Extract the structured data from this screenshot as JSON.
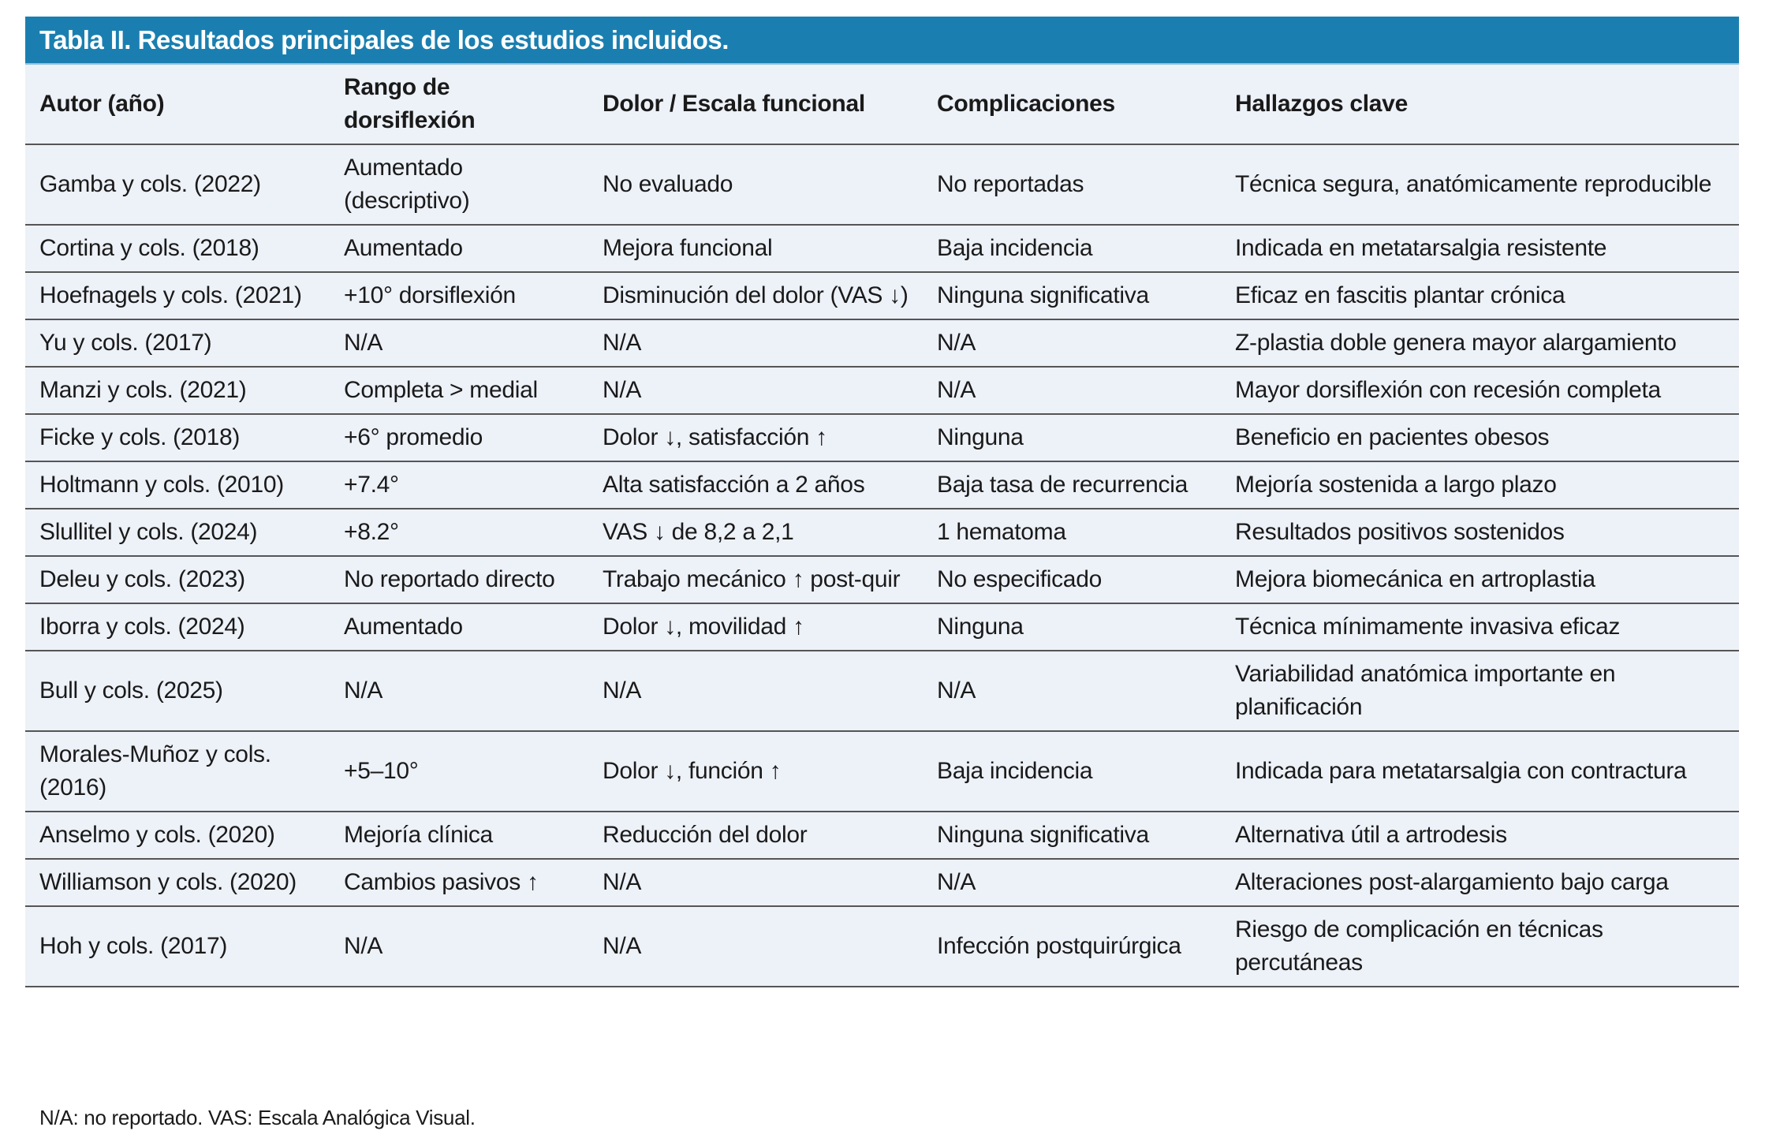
{
  "title": "Tabla II. Resultados principales de los estudios incluidos.",
  "columns": [
    "Autor (año)",
    "Rango de dorsiflexión",
    "Dolor / Escala funcional",
    "Complicaciones",
    "Hallazgos clave"
  ],
  "rows": [
    [
      "Gamba y cols. (2022)",
      "Aumentado (descriptivo)",
      "No evaluado",
      "No reportadas",
      "Técnica segura, anatómicamente reproducible"
    ],
    [
      "Cortina y cols. (2018)",
      "Aumentado",
      "Mejora funcional",
      "Baja incidencia",
      "Indicada en metatarsalgia resistente"
    ],
    [
      "Hoefnagels y cols. (2021)",
      "+10° dorsiflexión",
      "Disminución del dolor (VAS ↓)",
      "Ninguna significativa",
      "Eficaz en fascitis plantar crónica"
    ],
    [
      "Yu y cols. (2017)",
      "N/A",
      "N/A",
      "N/A",
      "Z-plastia doble genera mayor alargamiento"
    ],
    [
      "Manzi y cols. (2021)",
      "Completa > medial",
      "N/A",
      "N/A",
      "Mayor dorsiflexión con recesión completa"
    ],
    [
      "Ficke y cols. (2018)",
      "+6° promedio",
      "Dolor ↓, satisfacción ↑",
      "Ninguna",
      "Beneficio en pacientes obesos"
    ],
    [
      "Holtmann y cols. (2010)",
      "+7.4°",
      "Alta satisfacción a 2 años",
      "Baja tasa de recurrencia",
      "Mejoría sostenida a largo plazo"
    ],
    [
      "Slullitel y cols. (2024)",
      "+8.2°",
      "VAS ↓ de 8,2 a 2,1",
      "1 hematoma",
      "Resultados positivos sostenidos"
    ],
    [
      "Deleu y cols. (2023)",
      "No reportado directo",
      "Trabajo mecánico ↑ post-quir",
      "No especificado",
      "Mejora biomecánica en artroplastia"
    ],
    [
      "Iborra y cols. (2024)",
      "Aumentado",
      "Dolor ↓, movilidad ↑",
      "Ninguna",
      "Técnica mínimamente invasiva eficaz"
    ],
    [
      "Bull y cols. (2025)",
      "N/A",
      "N/A",
      "N/A",
      "Variabilidad anatómica importante en planificación"
    ],
    [
      "Morales-Muñoz y cols. (2016)",
      "+5–10°",
      "Dolor ↓, función ↑",
      "Baja incidencia",
      "Indicada para metatarsalgia con contractura"
    ],
    [
      "Anselmo y cols. (2020)",
      "Mejoría clínica",
      "Reducción del dolor",
      "Ninguna significativa",
      "Alternativa útil a artrodesis"
    ],
    [
      "Williamson y cols. (2020)",
      "Cambios pasivos ↑",
      "N/A",
      "N/A",
      "Alteraciones post-alargamiento bajo carga"
    ],
    [
      "Hoh y cols. (2017)",
      "N/A",
      "N/A",
      "Infección postquirúrgica",
      "Riesgo de complicación en técnicas percutáneas"
    ]
  ],
  "footnote": "N/A: no reportado. VAS: Escala Analógica Visual.",
  "colors": {
    "title_bar": "#1a7fb0",
    "table_bg": "#edf1f8"
  }
}
